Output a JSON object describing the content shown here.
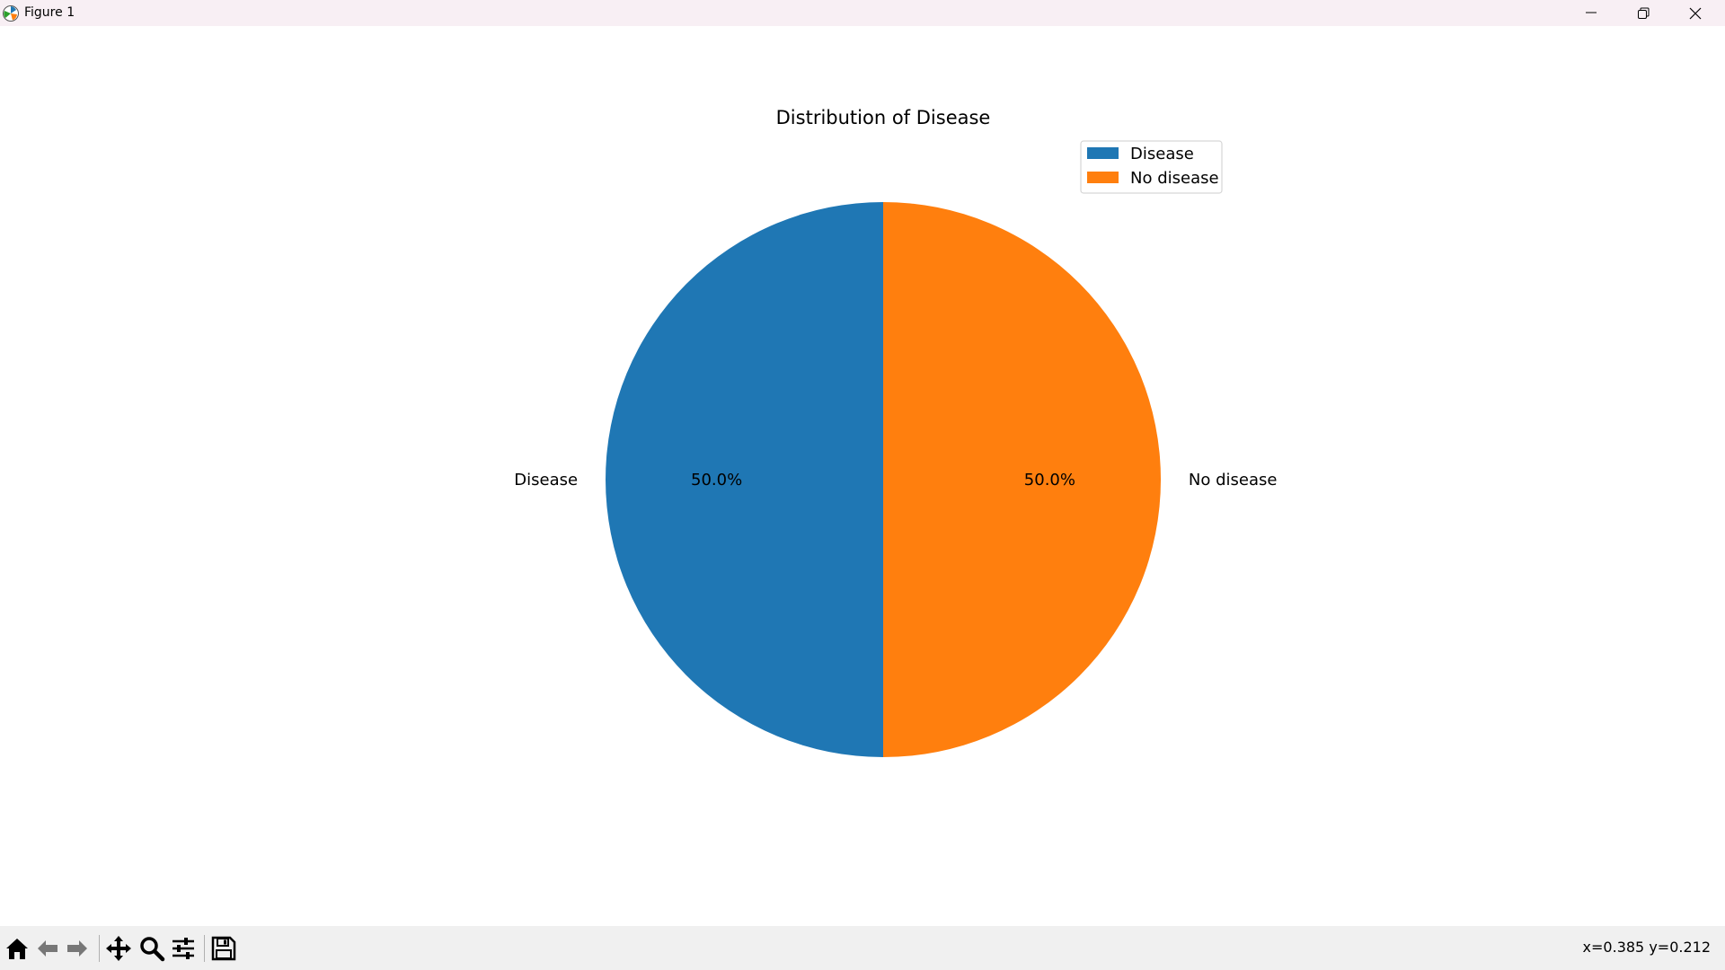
{
  "window": {
    "title": "Figure 1",
    "app_icon": "matplotlib-icon",
    "controls": {
      "minimize": "minimize-icon",
      "maximize": "restore-icon",
      "close": "close-icon"
    }
  },
  "chart_data": {
    "type": "pie",
    "title": "Distribution of Disease",
    "categories": [
      "Disease",
      "No disease"
    ],
    "values": [
      50.0,
      50.0
    ],
    "pct_labels": [
      "50.0%",
      "50.0%"
    ],
    "colors": [
      "#1f77b4",
      "#ff7f0e"
    ],
    "start_angle_deg": 90,
    "direction": "counterclockwise",
    "legend": {
      "entries": [
        "Disease",
        "No disease"
      ],
      "placement": "upper-right"
    }
  },
  "toolbar": {
    "buttons": [
      {
        "name": "home-button",
        "icon": "home-icon"
      },
      {
        "name": "back-button",
        "icon": "arrow-left-icon"
      },
      {
        "name": "forward-button",
        "icon": "arrow-right-icon"
      },
      {
        "name": "pan-button",
        "icon": "move-icon"
      },
      {
        "name": "zoom-button",
        "icon": "magnifier-icon"
      },
      {
        "name": "configure-subplots-button",
        "icon": "sliders-icon"
      },
      {
        "name": "save-button",
        "icon": "floppy-disk-icon"
      }
    ],
    "coordinates": "x=0.385 y=0.212"
  }
}
